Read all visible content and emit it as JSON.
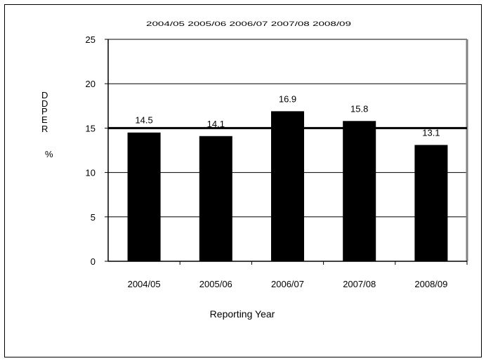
{
  "chart_data": {
    "type": "bar",
    "title": "2004/05 2005/06 2006/07 2007/08 2008/09",
    "ylabel_lines": [
      "D",
      "D",
      "P",
      "E",
      "R",
      "%"
    ],
    "xlabel": "Reporting Year",
    "categories": [
      "2004/05",
      "2005/06",
      "2006/07",
      "2007/08",
      "2008/09"
    ],
    "values": [
      14.5,
      14.1,
      16.9,
      15.8,
      13.1
    ],
    "value_labels": [
      "14.5",
      "14.1",
      "16.9",
      "15.8",
      "13.1"
    ],
    "ylim": [
      0,
      25
    ],
    "yticks": [
      0,
      5,
      10,
      15,
      20,
      25
    ],
    "reference_line": 15,
    "grid": true,
    "colors": {
      "bar": "#000000",
      "grid": "#000000",
      "plot_border": "#808080"
    }
  }
}
